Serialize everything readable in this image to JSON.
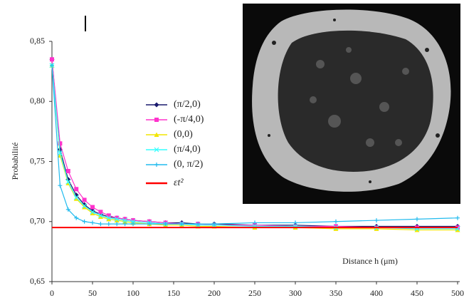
{
  "chart_data": {
    "type": "line",
    "y_label": "Probabilité",
    "x_label": "Distance h (μm)",
    "x": [
      0,
      10,
      20,
      30,
      40,
      50,
      60,
      70,
      80,
      90,
      100,
      120,
      140,
      160,
      180,
      200,
      250,
      300,
      350,
      400,
      450,
      500
    ],
    "series": [
      {
        "name": "(π/2,0)",
        "color": "#1a1a6e",
        "marker": "diamond",
        "values": [
          0.835,
          0.76,
          0.735,
          0.722,
          0.714,
          0.709,
          0.706,
          0.704,
          0.703,
          0.702,
          0.701,
          0.7,
          0.699,
          0.699,
          0.698,
          0.698,
          0.697,
          0.697,
          0.696,
          0.696,
          0.696,
          0.696
        ]
      },
      {
        "name": "(-π/4,0)",
        "color": "#ff33cc",
        "marker": "square",
        "values": [
          0.835,
          0.765,
          0.742,
          0.727,
          0.718,
          0.712,
          0.708,
          0.705,
          0.703,
          0.702,
          0.701,
          0.7,
          0.699,
          0.698,
          0.698,
          0.697,
          0.697,
          0.696,
          0.696,
          0.695,
          0.695,
          0.695
        ]
      },
      {
        "name": "(0,0)",
        "color": "#f2e600",
        "marker": "triangle",
        "values": [
          0.83,
          0.755,
          0.732,
          0.719,
          0.712,
          0.707,
          0.704,
          0.702,
          0.701,
          0.7,
          0.699,
          0.698,
          0.697,
          0.697,
          0.696,
          0.696,
          0.695,
          0.695,
          0.694,
          0.694,
          0.693,
          0.693
        ]
      },
      {
        "name": "(π/4,0)",
        "color": "#33ffff",
        "marker": "cross",
        "values": [
          0.83,
          0.757,
          0.733,
          0.72,
          0.713,
          0.708,
          0.705,
          0.703,
          0.702,
          0.701,
          0.7,
          0.699,
          0.698,
          0.698,
          0.697,
          0.697,
          0.696,
          0.696,
          0.695,
          0.695,
          0.694,
          0.694
        ]
      },
      {
        "name": "(0, π/2)",
        "color": "#22bbee",
        "marker": "plus",
        "values": [
          0.83,
          0.73,
          0.71,
          0.703,
          0.7,
          0.699,
          0.698,
          0.698,
          0.698,
          0.698,
          0.698,
          0.698,
          0.698,
          0.698,
          0.698,
          0.698,
          0.699,
          0.699,
          0.7,
          0.701,
          0.702,
          0.703
        ]
      },
      {
        "name": "εt²",
        "color": "#ff0000",
        "marker": "none",
        "values": [
          0.695,
          0.695,
          0.695,
          0.695,
          0.695,
          0.695,
          0.695,
          0.695,
          0.695,
          0.695,
          0.695,
          0.695,
          0.695,
          0.695,
          0.695,
          0.695,
          0.695,
          0.695,
          0.695,
          0.695,
          0.695,
          0.695
        ]
      }
    ],
    "xlim": [
      0,
      500
    ],
    "xticks": [
      0,
      50,
      100,
      150,
      200,
      250,
      300,
      350,
      400,
      450,
      500
    ],
    "ylim": [
      0.65,
      0.85
    ],
    "yticks": [
      {
        "value": 0.65,
        "label": "0,65"
      },
      {
        "value": 0.7,
        "label": "0,70"
      },
      {
        "value": 0.75,
        "label": "0,75"
      },
      {
        "value": 0.8,
        "label": "0,80"
      },
      {
        "value": 0.85,
        "label": "0,85"
      }
    ],
    "grid": false
  }
}
